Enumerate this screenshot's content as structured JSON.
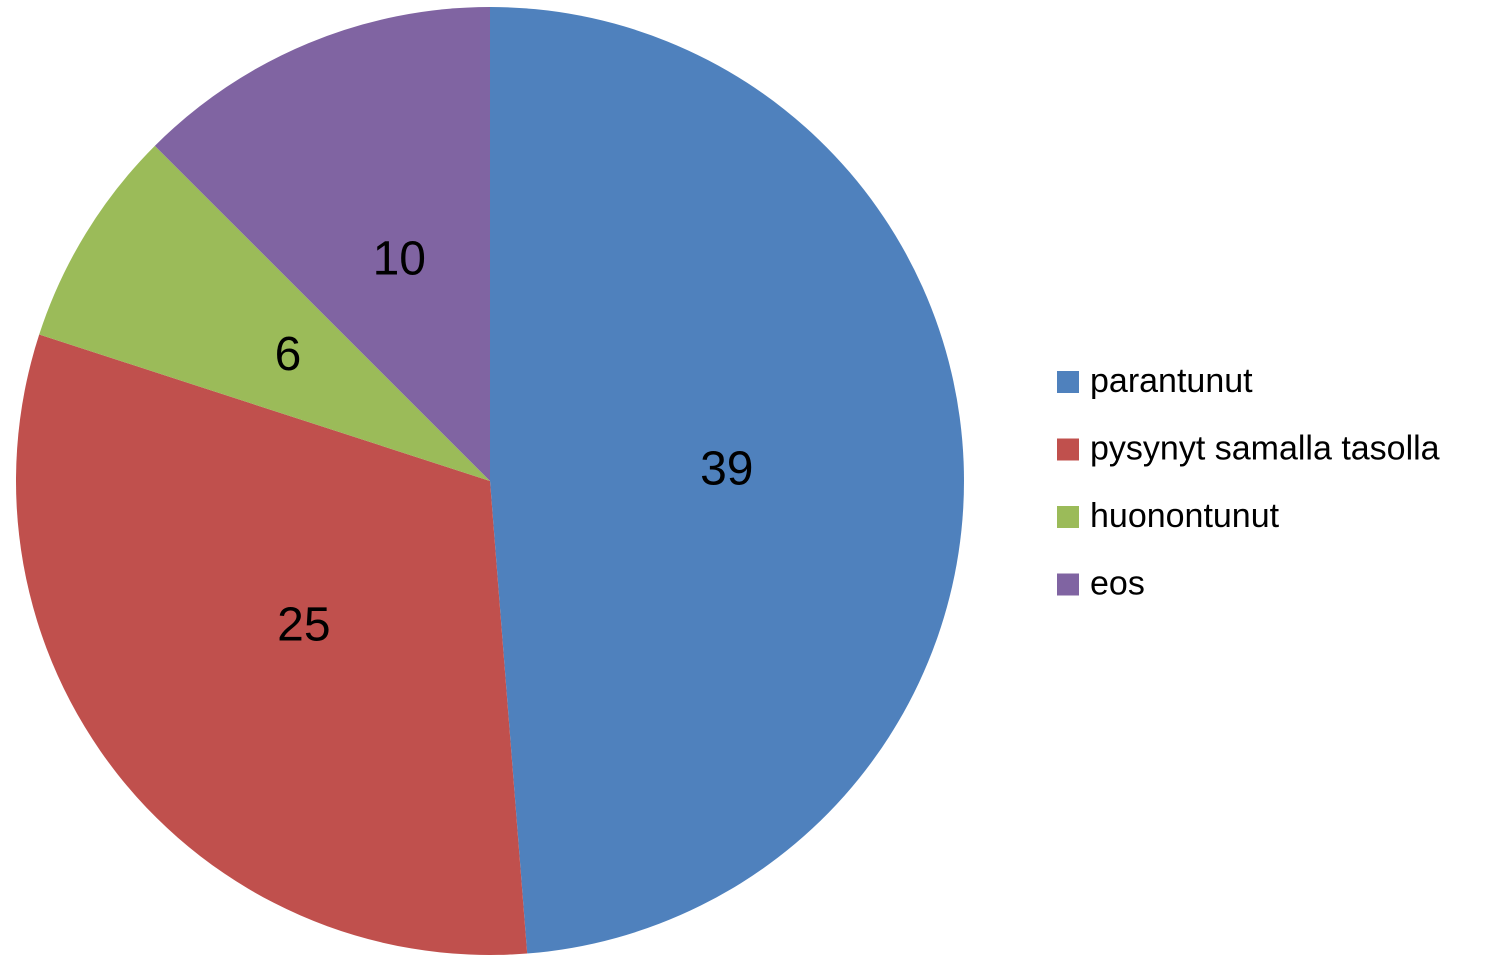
{
  "chart_data": {
    "type": "pie",
    "categories": [
      "parantunut",
      "pysynyt samalla tasolla",
      "huonontunut",
      "eos"
    ],
    "values": [
      39,
      25,
      6,
      10
    ],
    "colors": [
      "#4f81bd",
      "#c0504d",
      "#9bbb59",
      "#8064a2"
    ],
    "legend": "right"
  }
}
